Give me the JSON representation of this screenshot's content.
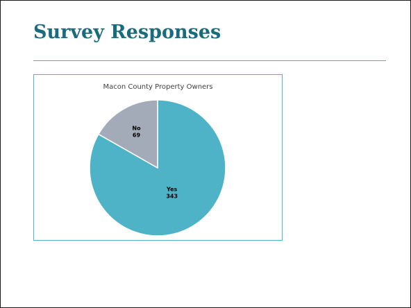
{
  "slide": {
    "title": "Survey Responses"
  },
  "chart_data": {
    "type": "pie",
    "title": "Macon County Property Owners",
    "categories": [
      "Yes",
      "No"
    ],
    "values": [
      343,
      69
    ],
    "colors": [
      "#4fb3c8",
      "#a2abb7"
    ],
    "data_labels": [
      "category",
      "value"
    ],
    "legend": "none"
  }
}
